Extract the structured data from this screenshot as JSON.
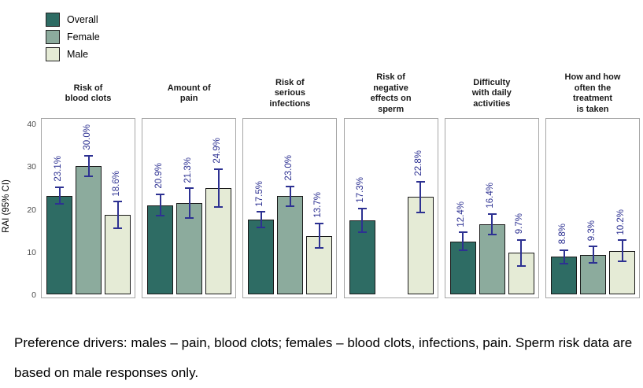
{
  "legend": {
    "items": [
      {
        "label": "Overall",
        "color": "#2e6c64"
      },
      {
        "label": "Female",
        "color": "#8cab9d"
      },
      {
        "label": "Male",
        "color": "#e5ebd6"
      }
    ]
  },
  "caption": "Preference drivers: males – pain, blood clots; females – blood clots, infections, pain. Sperm risk data are based on male responses only.",
  "chart_data": {
    "type": "bar",
    "title": "",
    "xlabel": "",
    "ylabel": "RAI (95% CI)",
    "ylim": [
      0,
      41.5
    ],
    "yticks": [
      0,
      10,
      20,
      30,
      40
    ],
    "grid": false,
    "legend_position": "top-left",
    "series_names": [
      "Overall",
      "Female",
      "Male"
    ],
    "series_colors": {
      "Overall": "#2e6c64",
      "Female": "#8cab9d",
      "Male": "#e5ebd6"
    },
    "error_bar_color": "#2d3192",
    "value_label_color": "#2d3192",
    "facets": [
      {
        "title": "Risk of\nblood clots",
        "bars": [
          {
            "series": "Overall",
            "slot": 0,
            "value": 23.1,
            "label": "23.1%",
            "ci": [
              21.2,
              25.1
            ]
          },
          {
            "series": "Female",
            "slot": 1,
            "value": 30.0,
            "label": "30.0%",
            "ci": [
              27.6,
              32.5
            ]
          },
          {
            "series": "Male",
            "slot": 2,
            "value": 18.6,
            "label": "18.6%",
            "ci": [
              15.5,
              21.7
            ]
          }
        ]
      },
      {
        "title": "Amount of\npain",
        "bars": [
          {
            "series": "Overall",
            "slot": 0,
            "value": 20.9,
            "label": "20.9%",
            "ci": [
              18.4,
              23.5
            ]
          },
          {
            "series": "Female",
            "slot": 1,
            "value": 21.3,
            "label": "21.3%",
            "ci": [
              17.8,
              24.8
            ]
          },
          {
            "series": "Male",
            "slot": 2,
            "value": 24.9,
            "label": "24.9%",
            "ci": [
              20.4,
              29.4
            ]
          }
        ]
      },
      {
        "title": "Risk of\nserious\ninfections",
        "bars": [
          {
            "series": "Overall",
            "slot": 0,
            "value": 17.5,
            "label": "17.5%",
            "ci": [
              15.7,
              19.3
            ]
          },
          {
            "series": "Female",
            "slot": 1,
            "value": 23.0,
            "label": "23.0%",
            "ci": [
              20.7,
              25.3
            ]
          },
          {
            "series": "Male",
            "slot": 2,
            "value": 13.7,
            "label": "13.7%",
            "ci": [
              10.8,
              16.6
            ]
          }
        ]
      },
      {
        "title": "Risk of\nnegative\neffects on\nsperm",
        "bars": [
          {
            "series": "Overall",
            "slot": 0,
            "value": 17.3,
            "label": "17.3%",
            "ci": [
              14.5,
              20.1
            ]
          },
          {
            "series": "Male",
            "slot": 2,
            "value": 22.8,
            "label": "22.8%",
            "ci": [
              19.2,
              26.4
            ]
          }
        ]
      },
      {
        "title": "Difficulty\nwith daily\nactivities",
        "bars": [
          {
            "series": "Overall",
            "slot": 0,
            "value": 12.4,
            "label": "12.4%",
            "ci": [
              10.3,
              14.5
            ]
          },
          {
            "series": "Female",
            "slot": 1,
            "value": 16.4,
            "label": "16.4%",
            "ci": [
              14.0,
              18.8
            ]
          },
          {
            "series": "Male",
            "slot": 2,
            "value": 9.7,
            "label": "9.7%",
            "ci": [
              6.6,
              12.8
            ]
          }
        ]
      },
      {
        "title": "How and how\noften the\ntreatment\nis taken",
        "bars": [
          {
            "series": "Overall",
            "slot": 0,
            "value": 8.8,
            "label": "8.8%",
            "ci": [
              7.2,
              10.4
            ]
          },
          {
            "series": "Female",
            "slot": 1,
            "value": 9.3,
            "label": "9.3%",
            "ci": [
              7.4,
              11.2
            ]
          },
          {
            "series": "Male",
            "slot": 2,
            "value": 10.2,
            "label": "10.2%",
            "ci": [
              7.7,
              12.7
            ]
          }
        ]
      }
    ]
  }
}
